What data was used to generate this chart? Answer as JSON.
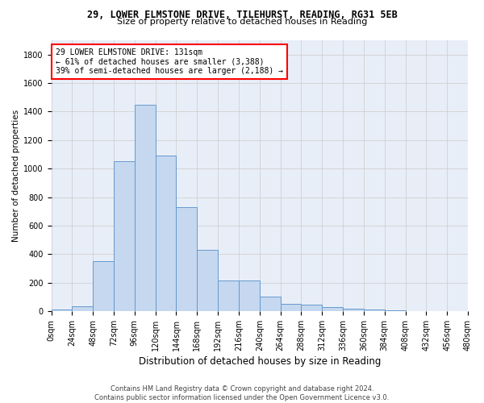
{
  "title": "29, LOWER ELMSTONE DRIVE, TILEHURST, READING, RG31 5EB",
  "subtitle": "Size of property relative to detached houses in Reading",
  "xlabel": "Distribution of detached houses by size in Reading",
  "ylabel": "Number of detached properties",
  "bar_color": "#c5d8f0",
  "bar_edge_color": "#6699cc",
  "background_color": "#e8eef8",
  "grid_color": "#d0d0d0",
  "annotation_text": "29 LOWER ELMSTONE DRIVE: 131sqm\n← 61% of detached houses are smaller (3,388)\n39% of semi-detached houses are larger (2,188) →",
  "footer": "Contains HM Land Registry data © Crown copyright and database right 2024.\nContains public sector information licensed under the Open Government Licence v3.0.",
  "bin_width": 24,
  "bar_values": [
    10,
    35,
    350,
    1050,
    1450,
    1090,
    730,
    430,
    215,
    215,
    100,
    50,
    45,
    30,
    20,
    10,
    5,
    3,
    2,
    1
  ],
  "bin_labels": [
    "0sqm",
    "24sqm",
    "48sqm",
    "72sqm",
    "96sqm",
    "120sqm",
    "144sqm",
    "168sqm",
    "192sqm",
    "216sqm",
    "240sqm",
    "264sqm",
    "288sqm",
    "312sqm",
    "336sqm",
    "360sqm",
    "384sqm",
    "408sqm",
    "432sqm",
    "456sqm",
    "480sqm"
  ],
  "ylim": [
    0,
    1900
  ],
  "yticks": [
    0,
    200,
    400,
    600,
    800,
    1000,
    1200,
    1400,
    1600,
    1800
  ],
  "title_fontsize": 8.5,
  "subtitle_fontsize": 8.0,
  "ylabel_fontsize": 7.5,
  "xlabel_fontsize": 8.5,
  "tick_fontsize": 7.0,
  "footer_fontsize": 6.0,
  "annotation_fontsize": 7.0
}
